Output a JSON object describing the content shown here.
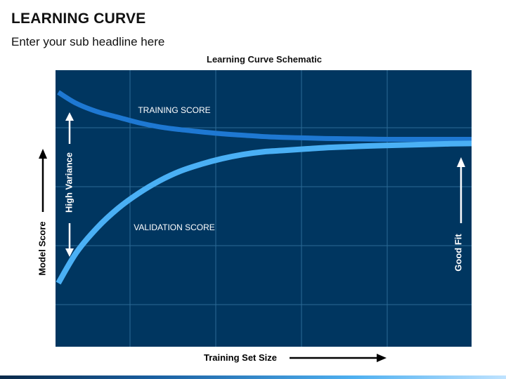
{
  "header": {
    "title": "LEARNING CURVE",
    "subtitle": "Enter your sub headline here"
  },
  "colors": {
    "plot_background": "#003660",
    "grid": "#2b6a96",
    "training_line": "#1e78d2",
    "validation_line": "#4ab0f5",
    "annotation": "#ffffff",
    "axis_arrow": "#000000"
  },
  "chart_data": {
    "type": "line",
    "title": "Learning Curve Schematic",
    "xlabel": "Training Set Size",
    "ylabel": "Model Score",
    "xlim": [
      0,
      10
    ],
    "ylim": [
      0,
      10
    ],
    "grid": true,
    "series": [
      {
        "name": "TRAINING SCORE",
        "x": [
          0,
          0.5,
          1,
          1.5,
          2,
          2.5,
          3,
          3.5,
          4,
          4.5,
          5,
          5.5,
          6,
          6.5,
          7,
          7.5,
          8,
          8.5,
          9,
          9.5,
          10
        ],
        "y": [
          9.2,
          8.8,
          8.5,
          8.3,
          8.1,
          7.95,
          7.85,
          7.77,
          7.7,
          7.65,
          7.6,
          7.57,
          7.55,
          7.53,
          7.52,
          7.51,
          7.5,
          7.5,
          7.5,
          7.5,
          7.5
        ]
      },
      {
        "name": "VALIDATION SCORE",
        "x": [
          0,
          0.5,
          1,
          1.5,
          2,
          2.5,
          3,
          3.5,
          4,
          4.5,
          5,
          5.5,
          6,
          6.5,
          7,
          7.5,
          8,
          8.5,
          9,
          9.5,
          10
        ],
        "y": [
          2.3,
          3.4,
          4.3,
          5.0,
          5.55,
          6.0,
          6.35,
          6.6,
          6.8,
          6.95,
          7.05,
          7.1,
          7.15,
          7.2,
          7.23,
          7.26,
          7.28,
          7.3,
          7.32,
          7.34,
          7.35
        ]
      }
    ],
    "annotations": {
      "high_variance": "High Variance",
      "good_fit": "Good Fit"
    }
  }
}
